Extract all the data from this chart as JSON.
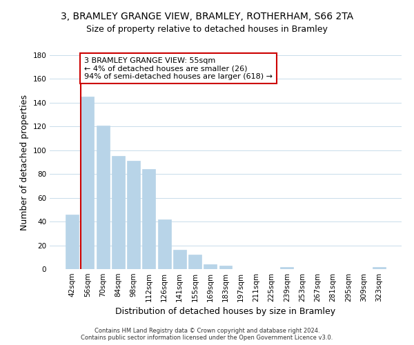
{
  "title": "3, BRAMLEY GRANGE VIEW, BRAMLEY, ROTHERHAM, S66 2TA",
  "subtitle": "Size of property relative to detached houses in Bramley",
  "xlabel": "Distribution of detached houses by size in Bramley",
  "ylabel": "Number of detached properties",
  "bar_labels": [
    "42sqm",
    "56sqm",
    "70sqm",
    "84sqm",
    "98sqm",
    "112sqm",
    "126sqm",
    "141sqm",
    "155sqm",
    "169sqm",
    "183sqm",
    "197sqm",
    "211sqm",
    "225sqm",
    "239sqm",
    "253sqm",
    "267sqm",
    "281sqm",
    "295sqm",
    "309sqm",
    "323sqm"
  ],
  "bar_values": [
    46,
    145,
    121,
    95,
    91,
    84,
    42,
    16,
    12,
    4,
    3,
    0,
    0,
    0,
    2,
    0,
    0,
    0,
    0,
    0,
    2
  ],
  "bar_color": "#b8d4e8",
  "red_line_color": "#cc0000",
  "ylim": [
    0,
    180
  ],
  "yticks": [
    0,
    20,
    40,
    60,
    80,
    100,
    120,
    140,
    160,
    180
  ],
  "annotation_text": "3 BRAMLEY GRANGE VIEW: 55sqm\n← 4% of detached houses are smaller (26)\n94% of semi-detached houses are larger (618) →",
  "annotation_box_color": "#ffffff",
  "annotation_box_edge": "#cc0000",
  "footer_line1": "Contains HM Land Registry data © Crown copyright and database right 2024.",
  "footer_line2": "Contains public sector information licensed under the Open Government Licence v3.0.",
  "background_color": "#ffffff",
  "grid_color": "#c8dcea",
  "title_fontsize": 10,
  "subtitle_fontsize": 9,
  "axis_label_fontsize": 9,
  "tick_fontsize": 7.5,
  "footer_fontsize": 6,
  "annotation_fontsize": 8
}
